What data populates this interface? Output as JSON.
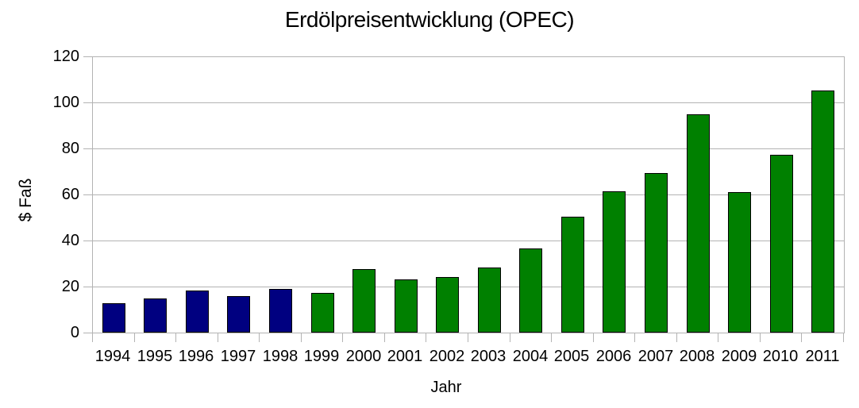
{
  "chart_data": {
    "type": "bar",
    "title": "Erdölpreisentwicklung (OPEC)",
    "xlabel": "Jahr",
    "ylabel": "$ Faß",
    "categories": [
      "1994",
      "1995",
      "1996",
      "1997",
      "1998",
      "1999",
      "2000",
      "2001",
      "2002",
      "2003",
      "2004",
      "2005",
      "2006",
      "2007",
      "2008",
      "2009",
      "2010",
      "2011"
    ],
    "values": [
      12.8,
      14.8,
      18.2,
      16.0,
      19.0,
      17.4,
      27.5,
      23.1,
      24.0,
      28.2,
      36.5,
      50.4,
      61.4,
      69.2,
      94.8,
      61.1,
      77.3,
      105.0
    ],
    "bar_colors": [
      "#000080",
      "#000080",
      "#000080",
      "#000080",
      "#000080",
      "#008000",
      "#008000",
      "#008000",
      "#008000",
      "#008000",
      "#008000",
      "#008000",
      "#008000",
      "#008000",
      "#008000",
      "#008000",
      "#008000",
      "#008000"
    ],
    "ylim": [
      0,
      120
    ],
    "yticks": [
      0,
      20,
      40,
      60,
      80,
      100,
      120
    ],
    "grid": "horizontal-major",
    "legend": "none",
    "colors": {
      "bar_navy": "#000080",
      "bar_green": "#008000",
      "bar_border": "#000000",
      "grid_and_axis": "#b3b3b3",
      "text": "#000000",
      "background": "#ffffff"
    }
  }
}
